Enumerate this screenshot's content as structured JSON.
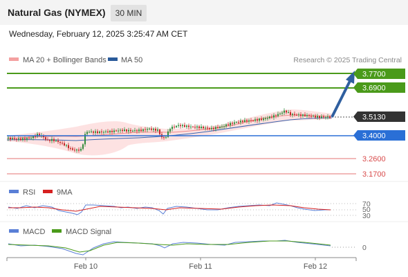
{
  "header": {
    "instrument": "Natural Gas (NYMEX)",
    "timeframe": "30 MIN"
  },
  "datetime": "Wednesday, February 12, 2025 3:25:47 AM CET",
  "legend": {
    "items": [
      {
        "label": "MA 20 + Bollinger Bands",
        "color": "#f4a0a0"
      },
      {
        "label": "MA 50",
        "color": "#2a5a9a"
      }
    ],
    "copyright": "Research © 2025 Trading Central"
  },
  "levels": [
    {
      "value": "3.7700",
      "kind": "resistance",
      "color": "#4a9a1a"
    },
    {
      "value": "3.6900",
      "kind": "resistance",
      "color": "#4a9a1a"
    },
    {
      "value": "3.5130",
      "kind": "current",
      "color": "#333333"
    },
    {
      "value": "3.4000",
      "kind": "pivot",
      "color": "#2a6fd6"
    },
    {
      "value": "3.2600",
      "kind": "support",
      "color": "#e57373"
    },
    {
      "value": "3.1700",
      "kind": "support",
      "color": "#e57373"
    }
  ],
  "rsi": {
    "legend": [
      {
        "label": "RSI",
        "color": "#5a7fd6"
      },
      {
        "label": "9MA",
        "color": "#d62020"
      }
    ],
    "levels": [
      "70",
      "50",
      "30"
    ]
  },
  "macd": {
    "legend": [
      {
        "label": "MACD",
        "color": "#5a7fd6"
      },
      {
        "label": "MACD Signal",
        "color": "#4a9a1a"
      }
    ],
    "zero_label": "0"
  },
  "xaxis": {
    "labels": [
      "Feb 10",
      "Feb 11",
      "Feb 12"
    ]
  },
  "colors": {
    "up_candle": "#2e8b3a",
    "down_candle": "#c62828",
    "band_fill": "#fde2e2",
    "projection_arrow": "#2f5f9f"
  }
}
